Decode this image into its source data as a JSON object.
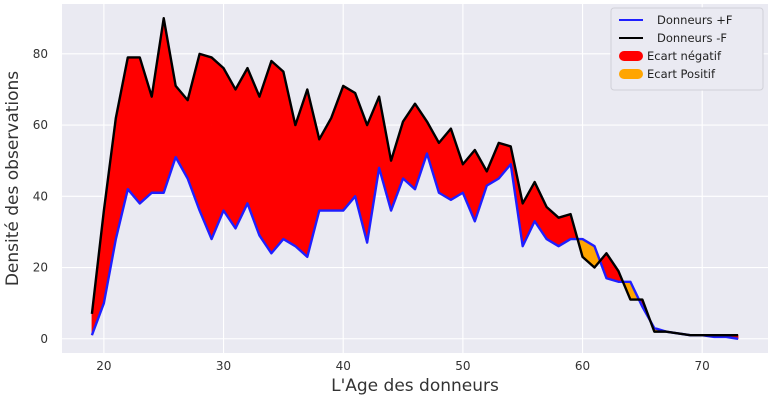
{
  "chart_data": {
    "type": "line",
    "xlabel": "L'Age des donneurs",
    "ylabel": "Densité des observations",
    "xlim": [
      16.5,
      75.5
    ],
    "ylim": [
      -4,
      94
    ],
    "xticks": [
      20,
      30,
      40,
      50,
      60,
      70
    ],
    "yticks": [
      0,
      20,
      40,
      60,
      80
    ],
    "grid": true,
    "legend_position": "top-right",
    "x": [
      19,
      20,
      21,
      22,
      23,
      24,
      25,
      26,
      27,
      28,
      29,
      30,
      31,
      32,
      33,
      34,
      35,
      36,
      37,
      38,
      39,
      40,
      41,
      42,
      43,
      44,
      45,
      46,
      47,
      48,
      49,
      50,
      51,
      52,
      53,
      54,
      55,
      56,
      57,
      58,
      59,
      60,
      61,
      62,
      63,
      64,
      65,
      66,
      67,
      68,
      69,
      70,
      71,
      72,
      73
    ],
    "series": [
      {
        "name": "Donneurs +F",
        "color": "#1f1fff",
        "values": [
          1,
          10,
          28,
          42,
          38,
          41,
          41,
          51,
          45,
          36,
          28,
          36,
          31,
          38,
          29,
          24,
          28,
          26,
          23,
          36,
          36,
          36,
          40,
          27,
          48,
          36,
          45,
          42,
          52,
          41,
          39,
          41,
          33,
          43,
          45,
          49,
          26,
          33,
          28,
          26,
          28,
          28,
          26,
          17,
          16,
          16,
          9,
          3,
          2,
          1.5,
          1,
          1,
          0.5,
          0.5,
          0
        ]
      },
      {
        "name": "Donneurs -F",
        "color": "#000000",
        "values": [
          7,
          36,
          62,
          79,
          79,
          68,
          90,
          71,
          67,
          80,
          79,
          76,
          70,
          76,
          68,
          78,
          75,
          60,
          70,
          56,
          62,
          71,
          69,
          60,
          68,
          50,
          61,
          66,
          61,
          55,
          59,
          49,
          53,
          47,
          55,
          54,
          38,
          44,
          37,
          34,
          35,
          23,
          20,
          24,
          19,
          11,
          11,
          2,
          2,
          1.5,
          1,
          1,
          1,
          1,
          1
        ]
      }
    ],
    "fill_legend": [
      {
        "name": "Ecart négatif",
        "color": "#ff0000"
      },
      {
        "name": "Ecart Positif",
        "color": "#ffa500"
      }
    ]
  }
}
